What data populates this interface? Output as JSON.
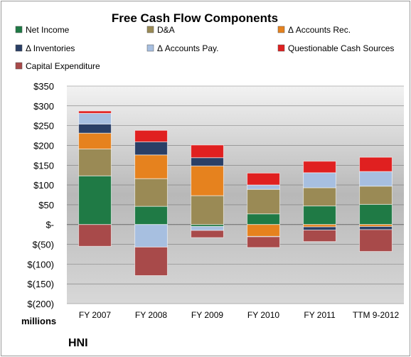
{
  "chart_data": {
    "type": "bar",
    "stacked": true,
    "title": "Free Cash Flow Components",
    "company": "HNI",
    "unit_label": "millions",
    "categories": [
      "FY 2007",
      "FY 2008",
      "FY 2009",
      "FY 2010",
      "FY 2011",
      "TTM 9-2012"
    ],
    "ylim": [
      -200,
      350
    ],
    "yticks": [
      350,
      300,
      250,
      200,
      150,
      100,
      50,
      0,
      -50,
      -100,
      -150,
      -200
    ],
    "ytick_labels": [
      "$350",
      "$300",
      "$250",
      "$200",
      "$150",
      "$100",
      "$50",
      "$-",
      "$(50)",
      "$(100)",
      "$(150)",
      "$(200)"
    ],
    "grid": true,
    "legend_position": "top",
    "series": [
      {
        "name": "Net Income",
        "color": "#1f7a45",
        "values": [
          123,
          46,
          -5,
          27,
          47,
          51
        ]
      },
      {
        "name": "D&A",
        "color": "#9a8a55",
        "values": [
          68,
          70,
          73,
          62,
          46,
          46
        ]
      },
      {
        "name": "Δ Accounts Rec.",
        "color": "#e6821e",
        "values": [
          40,
          60,
          75,
          -30,
          -6,
          -5
        ]
      },
      {
        "name": "Δ Inventories",
        "color": "#2a3f66",
        "values": [
          23,
          33,
          21,
          -1,
          -8,
          -8
        ]
      },
      {
        "name": "Δ Accounts Pay.",
        "color": "#a7bfe0",
        "values": [
          27,
          -57,
          -10,
          11,
          38,
          37
        ]
      },
      {
        "name": "Questionable Cash Sources",
        "color": "#e02020",
        "values": [
          6,
          29,
          32,
          30,
          29,
          36
        ]
      },
      {
        "name": "Capital Expenditure",
        "color": "#a84a4a",
        "values": [
          -55,
          -72,
          -18,
          -27,
          -29,
          -55
        ]
      }
    ]
  }
}
